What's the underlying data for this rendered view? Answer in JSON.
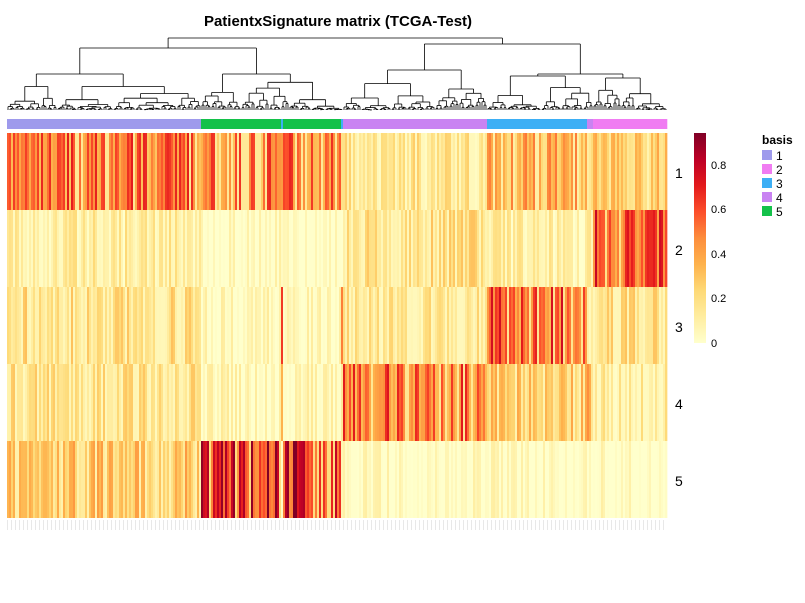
{
  "chart_data": {
    "type": "heatmap",
    "title": "PatientxSignature matrix (TCGA-Test)",
    "rows": [
      "1",
      "2",
      "3",
      "4",
      "5"
    ],
    "n_columns": 330,
    "column_annotation": {
      "name": "basis",
      "segments": [
        {
          "basis": "1",
          "count": 97
        },
        {
          "basis": "5",
          "count": 40
        },
        {
          "basis": "3",
          "count": 1
        },
        {
          "basis": "5",
          "count": 29
        },
        {
          "basis": "3",
          "count": 1
        },
        {
          "basis": "4",
          "count": 72
        },
        {
          "basis": "3",
          "count": 50
        },
        {
          "basis": "4",
          "count": 3
        },
        {
          "basis": "2",
          "count": 37
        }
      ]
    },
    "block_means": {
      "basis_1": [
        0.5,
        0.12,
        0.18,
        0.17,
        0.28
      ],
      "basis_5": [
        0.48,
        0.02,
        0.04,
        0.05,
        0.7
      ],
      "basis_4": [
        0.15,
        0.18,
        0.15,
        0.52,
        0.02
      ],
      "basis_3": [
        0.35,
        0.1,
        0.55,
        0.25,
        0.02
      ],
      "basis_2": [
        0.25,
        0.6,
        0.18,
        0.12,
        0.02
      ]
    },
    "colorbar": {
      "range": [
        0,
        0.95
      ],
      "ticks": [
        "0",
        "0.2",
        "0.4",
        "0.6",
        "0.8"
      ],
      "colors": [
        "#FFFFCC",
        "#FFEDA0",
        "#FED976",
        "#FEB24C",
        "#FD8D3C",
        "#FC4E2A",
        "#E31A1C",
        "#BD0026",
        "#800026"
      ]
    },
    "legend": {
      "title": "basis",
      "items": [
        {
          "label": "1",
          "color": "#9E9AEC"
        },
        {
          "label": "2",
          "color": "#F07CF2"
        },
        {
          "label": "3",
          "color": "#3DAFF5"
        },
        {
          "label": "4",
          "color": "#C983F2"
        },
        {
          "label": "5",
          "color": "#14C14A"
        }
      ]
    }
  }
}
